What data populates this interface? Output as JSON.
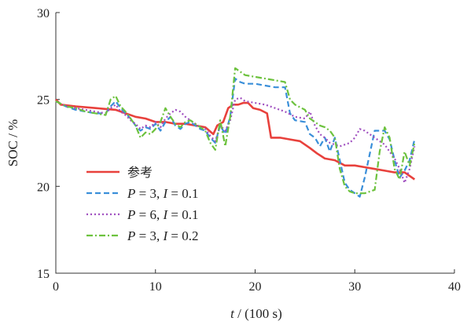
{
  "chart_data": {
    "type": "line",
    "xlabel_var": "t",
    "xlabel_unit": " / (100 s)",
    "ylabel": "SOC / %",
    "xlim": [
      0,
      40
    ],
    "ylim": [
      15,
      30
    ],
    "xticks": [
      0,
      10,
      20,
      30,
      40
    ],
    "yticks": [
      15,
      20,
      25,
      30
    ],
    "grid": false,
    "legend_position": "lower-left",
    "series": [
      {
        "name": "参考",
        "legend_parts": [
          "参考"
        ],
        "color": "#e8413c",
        "dash": "",
        "width": 2.6,
        "x": [
          0,
          0.5,
          2,
          4,
          6,
          8,
          9,
          10,
          11,
          12,
          13,
          14,
          15,
          15.8,
          16.2,
          16.8,
          17.3,
          17.8,
          18.3,
          18.8,
          19.3,
          19.8,
          20.5,
          21.2,
          21.6,
          22.5,
          23.5,
          24.5,
          25.5,
          26.2,
          27,
          28,
          29,
          30,
          31,
          32,
          33,
          34,
          35,
          35.5,
          36
        ],
        "y": [
          25.0,
          24.7,
          24.6,
          24.5,
          24.4,
          24.0,
          23.9,
          23.7,
          23.7,
          23.6,
          23.6,
          23.5,
          23.4,
          23.0,
          23.5,
          23.7,
          24.5,
          24.7,
          24.7,
          24.8,
          24.8,
          24.5,
          24.4,
          24.2,
          22.8,
          22.8,
          22.7,
          22.6,
          22.2,
          21.9,
          21.6,
          21.5,
          21.2,
          21.2,
          21.1,
          21.0,
          20.9,
          20.8,
          20.8,
          20.6,
          20.4
        ]
      },
      {
        "name": "P=3, I=0.1",
        "legend_parts": [
          "P",
          " = 3, ",
          "I",
          " = 0.1"
        ],
        "color": "#3a8fd9",
        "dash": "7,4",
        "width": 2.2,
        "x": [
          0,
          1,
          2,
          3,
          4,
          5,
          5.5,
          6,
          6.5,
          7,
          7.5,
          8,
          8.5,
          9,
          9.5,
          10,
          10.5,
          11,
          11.5,
          12,
          12.5,
          13,
          13.5,
          14,
          14.5,
          15,
          15.5,
          16,
          16.5,
          17,
          17.5,
          18,
          18.5,
          19,
          20,
          21,
          22,
          23,
          23.5,
          24,
          25,
          25.5,
          26,
          26.5,
          27,
          27.5,
          28,
          28.5,
          29,
          29.5,
          30,
          30.5,
          31,
          32,
          33,
          33.5,
          34,
          34.5,
          35,
          35.5,
          36
        ],
        "y": [
          24.9,
          24.6,
          24.4,
          24.3,
          24.2,
          24.2,
          24.6,
          24.9,
          24.5,
          24.2,
          23.9,
          23.5,
          23.2,
          23.4,
          23.3,
          23.6,
          23.2,
          23.7,
          24.0,
          23.5,
          23.3,
          23.6,
          23.7,
          23.5,
          23.3,
          23.2,
          22.8,
          22.5,
          23.5,
          23.0,
          24.0,
          26.2,
          26.0,
          25.9,
          25.9,
          25.8,
          25.7,
          25.7,
          24.2,
          23.8,
          23.7,
          23.0,
          22.8,
          22.3,
          22.8,
          22.0,
          22.8,
          21.5,
          20.2,
          19.8,
          19.6,
          19.4,
          20.5,
          23.2,
          23.2,
          22.7,
          21.5,
          20.5,
          20.9,
          21.5,
          22.7
        ]
      },
      {
        "name": "P=6, I=0.1",
        "legend_parts": [
          "P",
          " = 6, ",
          "I",
          " = 0.1"
        ],
        "color": "#a050c0",
        "dash": "2,3",
        "width": 2.2,
        "x": [
          0,
          1,
          2,
          3,
          4,
          5,
          5.5,
          6,
          6.5,
          7,
          7.5,
          8,
          8.5,
          9,
          9.5,
          10,
          10.5,
          11,
          11.5,
          12,
          12.5,
          13,
          13.5,
          14,
          14.5,
          15,
          15.5,
          16,
          16.5,
          17,
          17.5,
          18,
          18.5,
          19,
          20,
          21,
          22,
          23,
          24,
          25,
          25.5,
          26,
          26.5,
          27,
          27.5,
          28,
          28.5,
          29,
          29.5,
          30,
          30.5,
          31,
          32,
          33,
          33.5,
          34,
          34.5,
          35,
          35.5,
          36
        ],
        "y": [
          24.9,
          24.6,
          24.5,
          24.4,
          24.3,
          24.2,
          24.5,
          24.7,
          24.3,
          24.1,
          23.8,
          23.6,
          23.3,
          23.5,
          23.4,
          23.7,
          23.4,
          23.9,
          24.2,
          24.4,
          24.3,
          24.0,
          23.8,
          23.6,
          23.4,
          23.3,
          22.9,
          22.6,
          23.5,
          23.2,
          23.8,
          25.0,
          25.1,
          24.9,
          24.8,
          24.7,
          24.5,
          24.3,
          24.0,
          23.9,
          24.3,
          23.5,
          23.0,
          22.8,
          22.5,
          22.4,
          22.3,
          22.4,
          22.5,
          22.8,
          23.3,
          23.2,
          22.8,
          22.4,
          22.0,
          21.6,
          21.0,
          20.2,
          21.0,
          22.3
        ]
      },
      {
        "name": "P=3, I=0.2",
        "legend_parts": [
          "P",
          " = 3, ",
          "I",
          " = 0.2"
        ],
        "color": "#6dc23e",
        "dash": "8,3,2,3",
        "width": 2.2,
        "x": [
          0,
          1,
          2,
          3,
          4,
          5,
          5.5,
          6,
          6.5,
          7,
          7.5,
          8,
          8.5,
          9,
          9.5,
          10,
          10.5,
          11,
          11.5,
          12,
          12.5,
          13,
          13.5,
          14,
          14.5,
          15,
          15.5,
          16,
          16.5,
          17,
          17.5,
          18,
          18.5,
          19,
          20,
          21,
          22,
          23,
          23.5,
          24,
          25,
          25.5,
          26,
          26.5,
          27,
          27.5,
          28,
          28.5,
          29,
          29.5,
          30,
          31,
          32,
          32.5,
          33,
          33.5,
          34,
          34.5,
          35,
          35.5,
          36
        ],
        "y": [
          24.9,
          24.6,
          24.5,
          24.3,
          24.2,
          24.1,
          25.0,
          25.2,
          24.6,
          24.3,
          23.9,
          23.5,
          22.8,
          23.1,
          23.0,
          23.3,
          23.7,
          24.5,
          24.0,
          23.6,
          23.4,
          23.7,
          23.8,
          23.6,
          23.4,
          23.2,
          22.5,
          22.1,
          23.8,
          22.3,
          24.0,
          26.8,
          26.6,
          26.4,
          26.3,
          26.2,
          26.1,
          26.0,
          25.0,
          24.7,
          24.4,
          23.9,
          23.7,
          23.5,
          23.4,
          23.2,
          22.8,
          21.0,
          20.0,
          19.7,
          19.6,
          19.6,
          19.8,
          22.0,
          23.4,
          22.8,
          21.0,
          20.4,
          22.0,
          21.2,
          22.5
        ]
      }
    ]
  }
}
